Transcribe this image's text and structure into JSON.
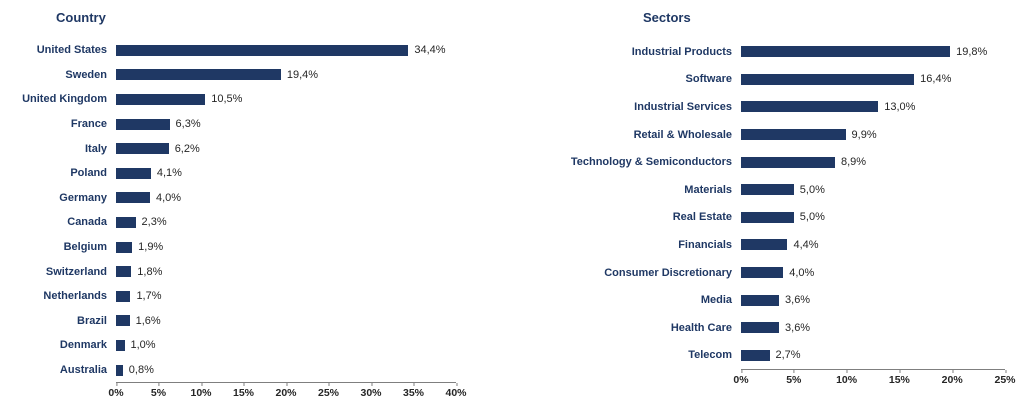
{
  "colors": {
    "bar": "#1f3864",
    "title": "#1f3864",
    "value_text": "#262626",
    "axis_line": "#7f7f7f"
  },
  "chart_data": [
    {
      "type": "bar",
      "orientation": "horizontal",
      "title": "Country",
      "categories": [
        "United States",
        "Sweden",
        "United Kingdom",
        "France",
        "Italy",
        "Poland",
        "Germany",
        "Canada",
        "Belgium",
        "Switzerland",
        "Netherlands",
        "Brazil",
        "Denmark",
        "Australia"
      ],
      "values": [
        34.4,
        19.4,
        10.5,
        6.3,
        6.2,
        4.1,
        4.0,
        2.3,
        1.9,
        1.8,
        1.7,
        1.6,
        1.0,
        0.8
      ],
      "value_labels": [
        "34,4%",
        "19,4%",
        "10,5%",
        "6,3%",
        "6,2%",
        "4,1%",
        "4,0%",
        "2,3%",
        "1,9%",
        "1,8%",
        "1,7%",
        "1,6%",
        "1,0%",
        "0,8%"
      ],
      "xlabel": "",
      "ylabel": "",
      "xlim": [
        0,
        40
      ],
      "x_ticks": [
        "0%",
        "5%",
        "10%",
        "15%",
        "20%",
        "25%",
        "30%",
        "35%",
        "40%"
      ],
      "grid": false,
      "legend": false,
      "bar_color": "#1f3864"
    },
    {
      "type": "bar",
      "orientation": "horizontal",
      "title": "Sectors",
      "categories": [
        "Industrial Products",
        "Software",
        "Industrial Services",
        "Retail & Wholesale",
        "Technology & Semiconductors",
        "Materials",
        "Real Estate",
        "Financials",
        "Consumer Discretionary",
        "Media",
        "Health Care",
        "Telecom"
      ],
      "values": [
        19.8,
        16.4,
        13.0,
        9.9,
        8.9,
        5.0,
        5.0,
        4.4,
        4.0,
        3.6,
        3.6,
        2.7
      ],
      "value_labels": [
        "19,8%",
        "16,4%",
        "13,0%",
        "9,9%",
        "8,9%",
        "5,0%",
        "5,0%",
        "4,4%",
        "4,0%",
        "3,6%",
        "3,6%",
        "2,7%"
      ],
      "xlabel": "",
      "ylabel": "",
      "xlim": [
        0,
        25
      ],
      "x_ticks": [
        "0%",
        "5%",
        "10%",
        "15%",
        "20%",
        "25%"
      ],
      "grid": false,
      "legend": false,
      "bar_color": "#1f3864"
    }
  ]
}
